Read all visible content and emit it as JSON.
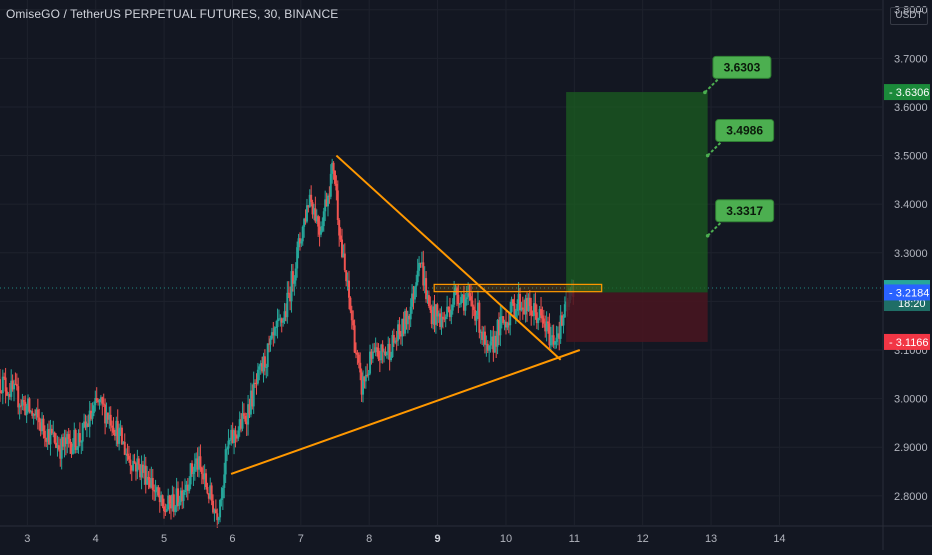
{
  "header": {
    "title": "OmiseGO / TetherUS PERPETUAL FUTURES, 30, BINANCE",
    "currency": "USDT"
  },
  "chart_data": {
    "type": "candlestick",
    "title": "OmiseGO / TetherUS PERPETUAL FUTURES, 30, BINANCE",
    "ylim": [
      2.74,
      3.82
    ],
    "xlim": [
      2.6,
      15.5
    ],
    "y_ticks": [
      "2.8000",
      "2.9000",
      "3.0000",
      "3.1000",
      "3.2000",
      "3.3000",
      "3.4000",
      "3.5000",
      "3.6000",
      "3.7000",
      "3.8000"
    ],
    "x_ticks": [
      "3",
      "4",
      "5",
      "6",
      "7",
      "8",
      "9",
      "10",
      "11",
      "12",
      "13",
      "14"
    ],
    "x_tick_values": [
      3,
      4,
      5,
      6,
      7,
      8,
      9,
      10,
      11,
      12,
      13,
      14
    ],
    "bold_tick": "9",
    "price_path": [
      [
        2.6,
        3.04
      ],
      [
        2.9,
        3.0
      ],
      [
        3.2,
        2.95
      ],
      [
        3.5,
        2.9
      ],
      [
        3.8,
        2.92
      ],
      [
        4.05,
        2.99
      ],
      [
        4.25,
        2.96
      ],
      [
        4.5,
        2.88
      ],
      [
        4.8,
        2.84
      ],
      [
        5.0,
        2.77
      ],
      [
        5.2,
        2.79
      ],
      [
        5.5,
        2.87
      ],
      [
        5.8,
        2.76
      ],
      [
        5.95,
        2.9
      ],
      [
        6.2,
        2.96
      ],
      [
        6.5,
        3.08
      ],
      [
        6.8,
        3.18
      ],
      [
        7.0,
        3.32
      ],
      [
        7.15,
        3.42
      ],
      [
        7.3,
        3.35
      ],
      [
        7.5,
        3.48
      ],
      [
        7.62,
        3.3
      ],
      [
        7.75,
        3.18
      ],
      [
        7.9,
        3.02
      ],
      [
        8.05,
        3.08
      ],
      [
        8.3,
        3.1
      ],
      [
        8.5,
        3.14
      ],
      [
        8.65,
        3.2
      ],
      [
        8.75,
        3.3
      ],
      [
        8.9,
        3.18
      ],
      [
        9.1,
        3.16
      ],
      [
        9.3,
        3.22
      ],
      [
        9.6,
        3.18
      ],
      [
        9.75,
        3.08
      ],
      [
        9.9,
        3.14
      ],
      [
        10.2,
        3.2
      ],
      [
        10.5,
        3.17
      ],
      [
        10.7,
        3.12
      ],
      [
        10.82,
        3.15
      ],
      [
        10.95,
        3.2
      ],
      [
        11.0,
        3.227
      ]
    ],
    "price_high": 3.5,
    "price_low": 2.75,
    "current_price": "3.2275",
    "countdown": "18:20",
    "stop_line": "3.2184",
    "stop_loss": "3.1166",
    "target_price": "3.6306",
    "colors": {
      "up": "#26a69a",
      "down": "#ef5350",
      "trend": "#ff9800",
      "profit": "#1b5e20",
      "loss": "#4a1520",
      "label_green": "#4caf50",
      "label_blue": "#2962ff",
      "label_red": "#f23645"
    },
    "trendlines": [
      {
        "name": "upper-trendline",
        "from": [
          7.52,
          3.5
        ],
        "to": [
          10.8,
          3.08
        ]
      },
      {
        "name": "lower-trendline",
        "from": [
          5.98,
          2.845
        ],
        "to": [
          11.08,
          3.1
        ]
      }
    ],
    "resistance_zone": {
      "x_range": [
        8.95,
        11.4
      ],
      "y_range": [
        3.22,
        3.235
      ]
    },
    "position": {
      "x_range": [
        10.88,
        12.95
      ],
      "entry": 3.2184,
      "target": 3.6306,
      "stop": 3.1166
    },
    "targets": [
      {
        "label": "3.6303",
        "value": 3.6303,
        "point": [
          12.91,
          3.63
        ]
      },
      {
        "label": "3.4986",
        "value": 3.4986,
        "point": [
          12.95,
          3.5
        ]
      },
      {
        "label": "3.3317",
        "value": 3.3317,
        "point": [
          12.95,
          3.335
        ]
      }
    ]
  }
}
